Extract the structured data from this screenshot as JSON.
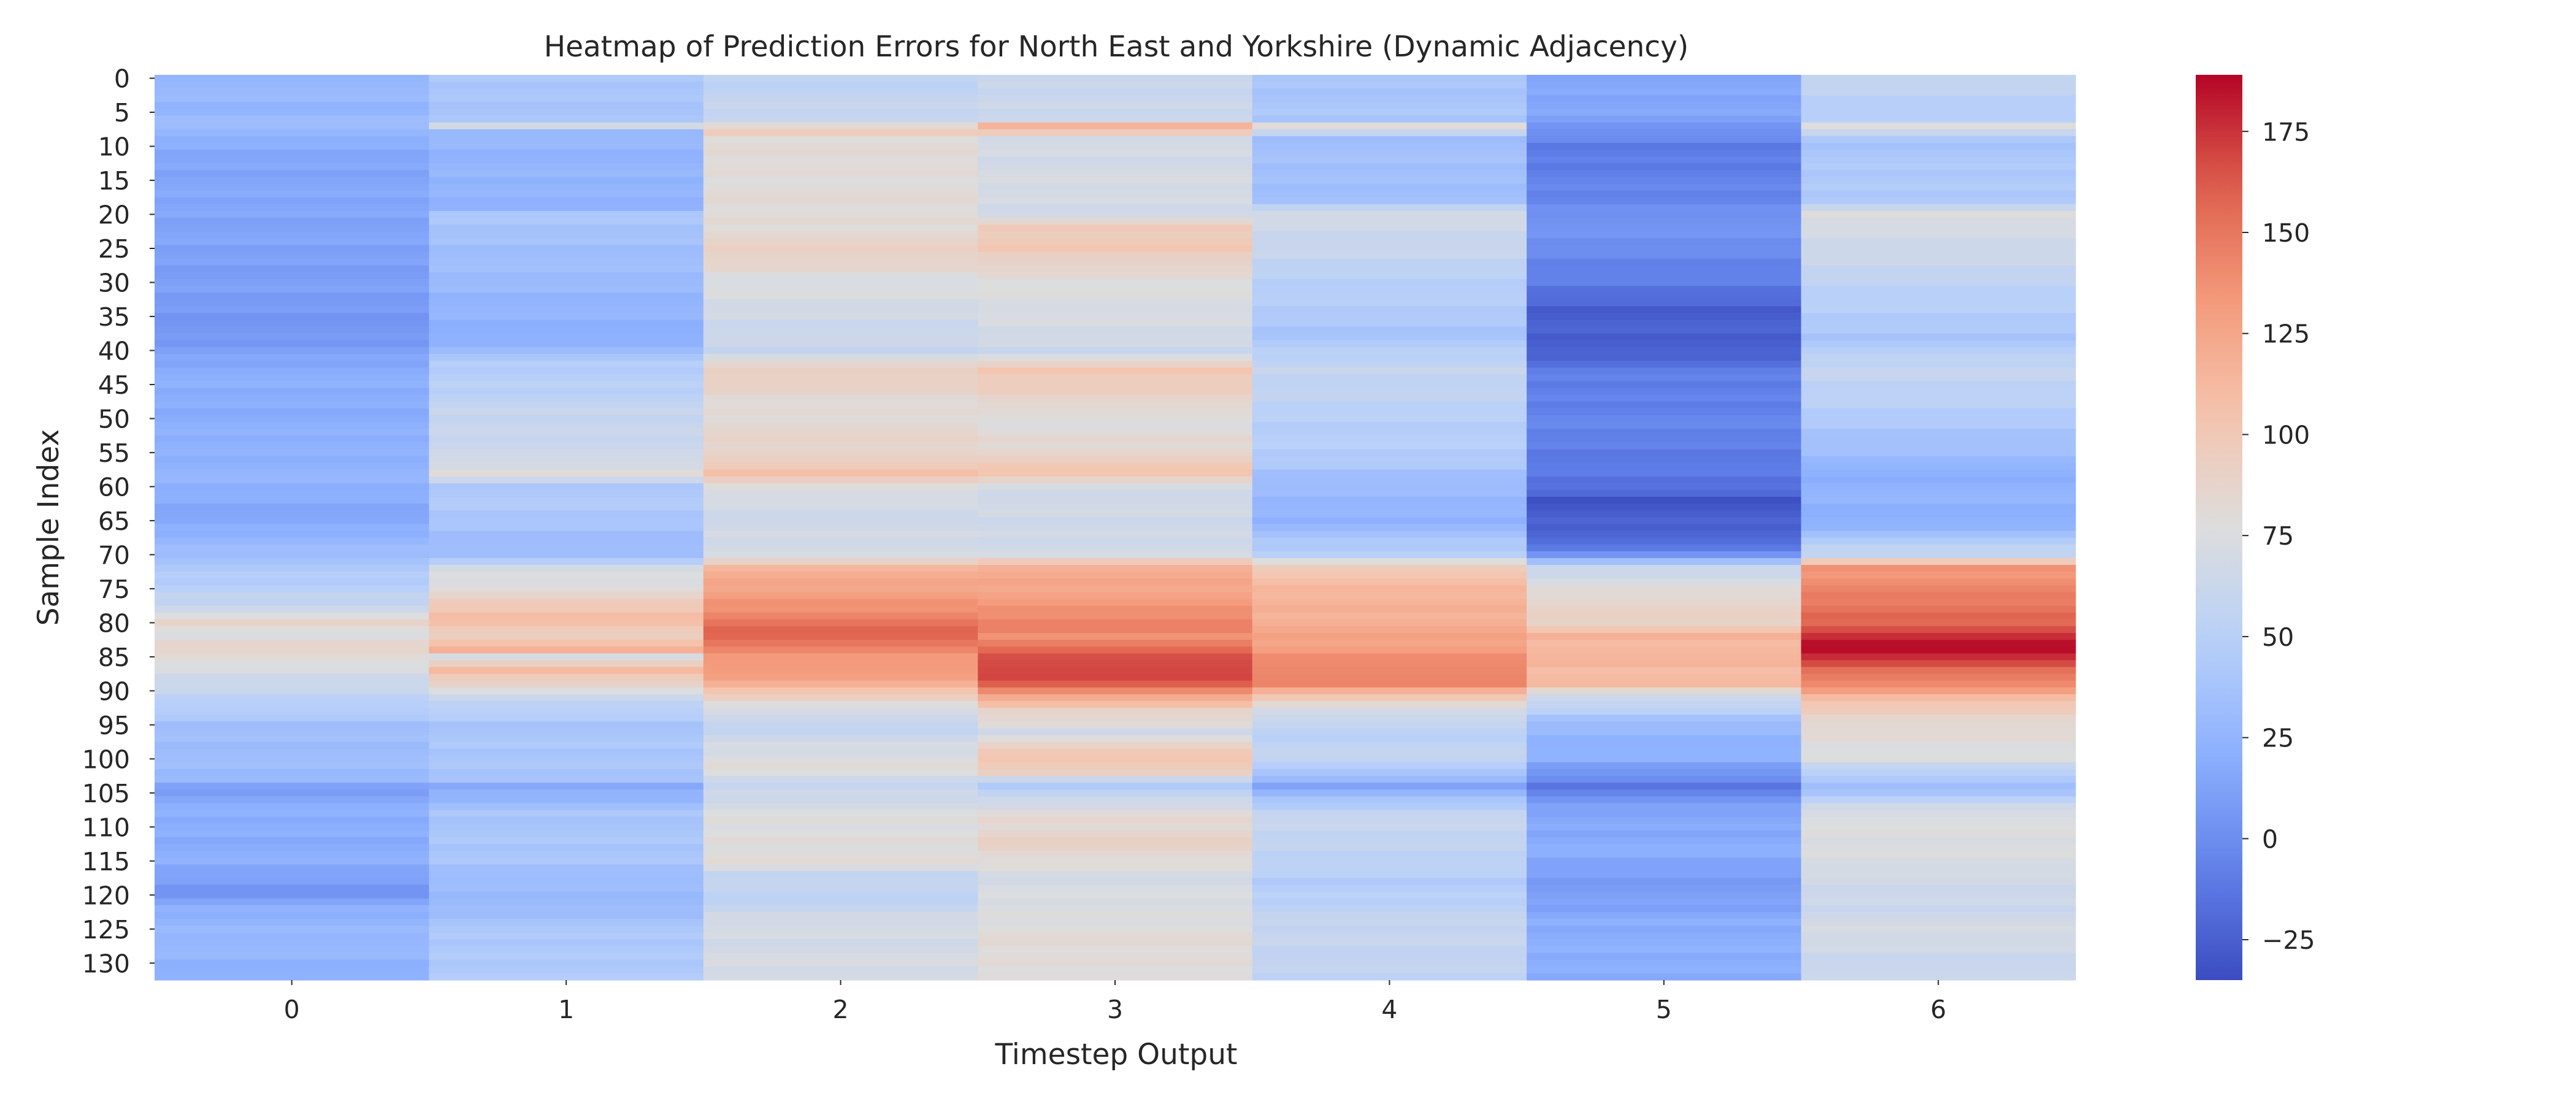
{
  "chart_data": {
    "type": "heatmap",
    "title": "Heatmap of Prediction Errors for North East and Yorkshire (Dynamic Adjacency)",
    "xlabel": "Timestep Output",
    "ylabel": "Sample Index",
    "x_categories": [
      "0",
      "1",
      "2",
      "3",
      "4",
      "5",
      "6"
    ],
    "n_rows": 133,
    "y_tick_labels": [
      "0",
      "5",
      "10",
      "15",
      "20",
      "25",
      "30",
      "35",
      "40",
      "45",
      "50",
      "55",
      "60",
      "65",
      "70",
      "75",
      "80",
      "85",
      "90",
      "95",
      "100",
      "105",
      "110",
      "115",
      "120",
      "125",
      "130"
    ],
    "colorbar": {
      "colormap": "coolwarm",
      "vmin": -35,
      "vmax": 189,
      "ticks": [
        -25,
        0,
        25,
        50,
        75,
        100,
        125,
        150,
        175
      ]
    },
    "grid": false,
    "column_profiles": [
      {
        "column": "0",
        "keyframes": [
          [
            0,
            30
          ],
          [
            5,
            25
          ],
          [
            7,
            35
          ],
          [
            9,
            20
          ],
          [
            12,
            15
          ],
          [
            20,
            15
          ],
          [
            30,
            10
          ],
          [
            38,
            5
          ],
          [
            43,
            20
          ],
          [
            50,
            20
          ],
          [
            58,
            25
          ],
          [
            65,
            15
          ],
          [
            70,
            35
          ],
          [
            75,
            50
          ],
          [
            78,
            65
          ],
          [
            80,
            85
          ],
          [
            82,
            75
          ],
          [
            84,
            90
          ],
          [
            86,
            75
          ],
          [
            90,
            60
          ],
          [
            95,
            35
          ],
          [
            103,
            30
          ],
          [
            104,
            10
          ],
          [
            107,
            20
          ],
          [
            115,
            20
          ],
          [
            118,
            10
          ],
          [
            120,
            5
          ],
          [
            122,
            20
          ],
          [
            126,
            30
          ],
          [
            132,
            20
          ]
        ]
      },
      {
        "column": "1",
        "keyframes": [
          [
            0,
            40
          ],
          [
            6,
            40
          ],
          [
            7,
            65
          ],
          [
            8,
            30
          ],
          [
            12,
            25
          ],
          [
            19,
            25
          ],
          [
            20,
            40
          ],
          [
            30,
            30
          ],
          [
            38,
            20
          ],
          [
            42,
            45
          ],
          [
            50,
            60
          ],
          [
            56,
            65
          ],
          [
            58,
            80
          ],
          [
            60,
            45
          ],
          [
            65,
            40
          ],
          [
            70,
            30
          ],
          [
            72,
            70
          ],
          [
            76,
            85
          ],
          [
            79,
            110
          ],
          [
            82,
            95
          ],
          [
            84,
            115
          ],
          [
            85,
            75
          ],
          [
            87,
            110
          ],
          [
            89,
            90
          ],
          [
            91,
            60
          ],
          [
            95,
            40
          ],
          [
            103,
            40
          ],
          [
            104,
            15
          ],
          [
            108,
            40
          ],
          [
            115,
            40
          ],
          [
            118,
            30
          ],
          [
            122,
            30
          ],
          [
            124,
            40
          ],
          [
            132,
            45
          ]
        ]
      },
      {
        "column": "2",
        "keyframes": [
          [
            0,
            55
          ],
          [
            6,
            60
          ],
          [
            8,
            100
          ],
          [
            9,
            80
          ],
          [
            20,
            80
          ],
          [
            26,
            90
          ],
          [
            30,
            75
          ],
          [
            40,
            60
          ],
          [
            43,
            95
          ],
          [
            48,
            80
          ],
          [
            56,
            90
          ],
          [
            58,
            110
          ],
          [
            60,
            75
          ],
          [
            65,
            65
          ],
          [
            70,
            70
          ],
          [
            72,
            115
          ],
          [
            76,
            130
          ],
          [
            80,
            150
          ],
          [
            82,
            160
          ],
          [
            84,
            140
          ],
          [
            87,
            130
          ],
          [
            89,
            120
          ],
          [
            91,
            90
          ],
          [
            95,
            55
          ],
          [
            98,
            70
          ],
          [
            101,
            80
          ],
          [
            104,
            60
          ],
          [
            108,
            75
          ],
          [
            115,
            80
          ],
          [
            117,
            60
          ],
          [
            121,
            55
          ],
          [
            124,
            70
          ],
          [
            132,
            70
          ]
        ]
      },
      {
        "column": "3",
        "keyframes": [
          [
            0,
            60
          ],
          [
            6,
            65
          ],
          [
            7,
            115
          ],
          [
            9,
            70
          ],
          [
            20,
            70
          ],
          [
            22,
            95
          ],
          [
            25,
            100
          ],
          [
            29,
            80
          ],
          [
            40,
            65
          ],
          [
            43,
            100
          ],
          [
            47,
            90
          ],
          [
            50,
            75
          ],
          [
            56,
            90
          ],
          [
            58,
            105
          ],
          [
            60,
            70
          ],
          [
            65,
            65
          ],
          [
            70,
            70
          ],
          [
            72,
            120
          ],
          [
            77,
            130
          ],
          [
            80,
            145
          ],
          [
            82,
            140
          ],
          [
            84,
            155
          ],
          [
            86,
            170
          ],
          [
            89,
            165
          ],
          [
            91,
            120
          ],
          [
            93,
            90
          ],
          [
            96,
            70
          ],
          [
            100,
            105
          ],
          [
            102,
            90
          ],
          [
            104,
            45
          ],
          [
            108,
            80
          ],
          [
            112,
            90
          ],
          [
            115,
            80
          ],
          [
            118,
            70
          ],
          [
            122,
            75
          ],
          [
            126,
            80
          ],
          [
            132,
            80
          ]
        ]
      },
      {
        "column": "4",
        "keyframes": [
          [
            0,
            40
          ],
          [
            6,
            40
          ],
          [
            7,
            80
          ],
          [
            9,
            35
          ],
          [
            18,
            35
          ],
          [
            20,
            70
          ],
          [
            30,
            50
          ],
          [
            38,
            40
          ],
          [
            43,
            60
          ],
          [
            50,
            50
          ],
          [
            56,
            45
          ],
          [
            60,
            30
          ],
          [
            65,
            25
          ],
          [
            70,
            50
          ],
          [
            72,
            100
          ],
          [
            76,
            115
          ],
          [
            80,
            120
          ],
          [
            84,
            130
          ],
          [
            86,
            145
          ],
          [
            89,
            140
          ],
          [
            92,
            80
          ],
          [
            96,
            50
          ],
          [
            100,
            60
          ],
          [
            104,
            15
          ],
          [
            108,
            60
          ],
          [
            115,
            55
          ],
          [
            118,
            45
          ],
          [
            122,
            55
          ],
          [
            126,
            60
          ],
          [
            132,
            55
          ]
        ]
      },
      {
        "column": "5",
        "keyframes": [
          [
            0,
            15
          ],
          [
            6,
            15
          ],
          [
            7,
            5
          ],
          [
            10,
            -10
          ],
          [
            18,
            -5
          ],
          [
            20,
            5
          ],
          [
            25,
            0
          ],
          [
            30,
            -10
          ],
          [
            34,
            -25
          ],
          [
            40,
            -25
          ],
          [
            43,
            -10
          ],
          [
            50,
            -5
          ],
          [
            56,
            -10
          ],
          [
            60,
            -15
          ],
          [
            62,
            -30
          ],
          [
            68,
            -20
          ],
          [
            70,
            5
          ],
          [
            72,
            60
          ],
          [
            76,
            85
          ],
          [
            80,
            90
          ],
          [
            82,
            115
          ],
          [
            89,
            110
          ],
          [
            91,
            65
          ],
          [
            95,
            30
          ],
          [
            100,
            20
          ],
          [
            104,
            -10
          ],
          [
            108,
            15
          ],
          [
            113,
            20
          ],
          [
            117,
            10
          ],
          [
            121,
            10
          ],
          [
            124,
            20
          ],
          [
            132,
            20
          ]
        ]
      },
      {
        "column": "6",
        "keyframes": [
          [
            0,
            60
          ],
          [
            6,
            45
          ],
          [
            7,
            80
          ],
          [
            9,
            40
          ],
          [
            18,
            45
          ],
          [
            20,
            75
          ],
          [
            30,
            55
          ],
          [
            38,
            40
          ],
          [
            43,
            60
          ],
          [
            50,
            45
          ],
          [
            56,
            30
          ],
          [
            58,
            20
          ],
          [
            60,
            25
          ],
          [
            65,
            20
          ],
          [
            70,
            60
          ],
          [
            72,
            135
          ],
          [
            76,
            145
          ],
          [
            80,
            160
          ],
          [
            82,
            175
          ],
          [
            84,
            189
          ],
          [
            86,
            165
          ],
          [
            89,
            140
          ],
          [
            92,
            100
          ],
          [
            96,
            80
          ],
          [
            100,
            75
          ],
          [
            104,
            30
          ],
          [
            108,
            75
          ],
          [
            115,
            75
          ],
          [
            118,
            65
          ],
          [
            122,
            65
          ],
          [
            126,
            70
          ],
          [
            132,
            60
          ]
        ]
      }
    ]
  }
}
